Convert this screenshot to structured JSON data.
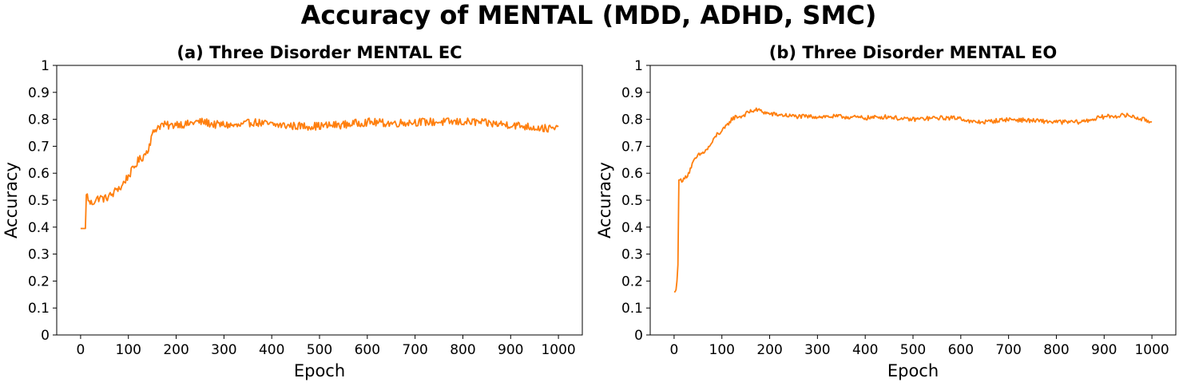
{
  "figure": {
    "suptitle": "Accuracy of MENTAL (MDD, ADHD, SMC)",
    "line_color": "#ff7f0e"
  },
  "chart_data": [
    {
      "type": "line",
      "title": "(a) Three Disorder MENTAL EC",
      "xlabel": "Epoch",
      "ylabel": "Accuracy",
      "xlim": [
        -50,
        1050
      ],
      "ylim": [
        0,
        1
      ],
      "xticks": [
        0,
        100,
        200,
        300,
        400,
        500,
        600,
        700,
        800,
        900,
        1000
      ],
      "yticks": [
        "0",
        "0.1",
        "0.2",
        "0.3",
        "0.4",
        "0.5",
        "0.6",
        "0.7",
        "0.8",
        "0.9",
        "1"
      ],
      "grid": false,
      "legend": "none",
      "noise_amplitude": 0.015,
      "series": [
        {
          "color": "#ff7f0e",
          "points": [
            [
              0,
              0.395
            ],
            [
              10,
              0.395
            ],
            [
              11,
              0.395
            ],
            [
              12,
              0.52
            ],
            [
              15,
              0.515
            ],
            [
              18,
              0.49
            ],
            [
              25,
              0.49
            ],
            [
              30,
              0.5
            ],
            [
              40,
              0.51
            ],
            [
              50,
              0.505
            ],
            [
              60,
              0.515
            ],
            [
              70,
              0.525
            ],
            [
              75,
              0.545
            ],
            [
              85,
              0.545
            ],
            [
              90,
              0.565
            ],
            [
              100,
              0.59
            ],
            [
              110,
              0.615
            ],
            [
              120,
              0.645
            ],
            [
              130,
              0.66
            ],
            [
              140,
              0.685
            ],
            [
              150,
              0.74
            ],
            [
              155,
              0.76
            ],
            [
              160,
              0.77
            ],
            [
              170,
              0.78
            ],
            [
              190,
              0.775
            ],
            [
              200,
              0.785
            ],
            [
              220,
              0.78
            ],
            [
              240,
              0.79
            ],
            [
              260,
              0.79
            ],
            [
              280,
              0.78
            ],
            [
              300,
              0.78
            ],
            [
              330,
              0.775
            ],
            [
              360,
              0.79
            ],
            [
              400,
              0.78
            ],
            [
              450,
              0.775
            ],
            [
              500,
              0.775
            ],
            [
              550,
              0.78
            ],
            [
              600,
              0.79
            ],
            [
              650,
              0.785
            ],
            [
              700,
              0.79
            ],
            [
              750,
              0.79
            ],
            [
              800,
              0.79
            ],
            [
              830,
              0.79
            ],
            [
              850,
              0.785
            ],
            [
              900,
              0.78
            ],
            [
              950,
              0.77
            ],
            [
              980,
              0.765
            ],
            [
              1000,
              0.765
            ]
          ]
        }
      ]
    },
    {
      "type": "line",
      "title": "(b) Three Disorder MENTAL EO",
      "xlabel": "Epoch",
      "ylabel": "Accuracy",
      "xlim": [
        -50,
        1050
      ],
      "ylim": [
        0,
        1
      ],
      "xticks": [
        0,
        100,
        200,
        300,
        400,
        500,
        600,
        700,
        800,
        900,
        1000
      ],
      "yticks": [
        "0",
        "0.1",
        "0.2",
        "0.3",
        "0.4",
        "0.5",
        "0.6",
        "0.7",
        "0.8",
        "0.9",
        "1"
      ],
      "grid": false,
      "legend": "none",
      "noise_amplitude": 0.008,
      "series": [
        {
          "color": "#ff7f0e",
          "points": [
            [
              0,
              0.16
            ],
            [
              3,
              0.16
            ],
            [
              5,
              0.175
            ],
            [
              6,
              0.2
            ],
            [
              7,
              0.3
            ],
            [
              8,
              0.26
            ],
            [
              9,
              0.5
            ],
            [
              10,
              0.575
            ],
            [
              20,
              0.575
            ],
            [
              30,
              0.6
            ],
            [
              40,
              0.64
            ],
            [
              50,
              0.665
            ],
            [
              60,
              0.675
            ],
            [
              70,
              0.69
            ],
            [
              80,
              0.715
            ],
            [
              90,
              0.745
            ],
            [
              100,
              0.755
            ],
            [
              110,
              0.775
            ],
            [
              120,
              0.8
            ],
            [
              130,
              0.81
            ],
            [
              140,
              0.81
            ],
            [
              150,
              0.82
            ],
            [
              160,
              0.83
            ],
            [
              175,
              0.835
            ],
            [
              190,
              0.825
            ],
            [
              200,
              0.82
            ],
            [
              230,
              0.815
            ],
            [
              260,
              0.81
            ],
            [
              300,
              0.81
            ],
            [
              350,
              0.81
            ],
            [
              400,
              0.805
            ],
            [
              450,
              0.81
            ],
            [
              480,
              0.8
            ],
            [
              500,
              0.8
            ],
            [
              550,
              0.805
            ],
            [
              600,
              0.805
            ],
            [
              620,
              0.79
            ],
            [
              650,
              0.79
            ],
            [
              700,
              0.8
            ],
            [
              750,
              0.795
            ],
            [
              800,
              0.79
            ],
            [
              850,
              0.79
            ],
            [
              900,
              0.81
            ],
            [
              950,
              0.815
            ],
            [
              980,
              0.8
            ],
            [
              1000,
              0.79
            ]
          ]
        }
      ]
    }
  ]
}
